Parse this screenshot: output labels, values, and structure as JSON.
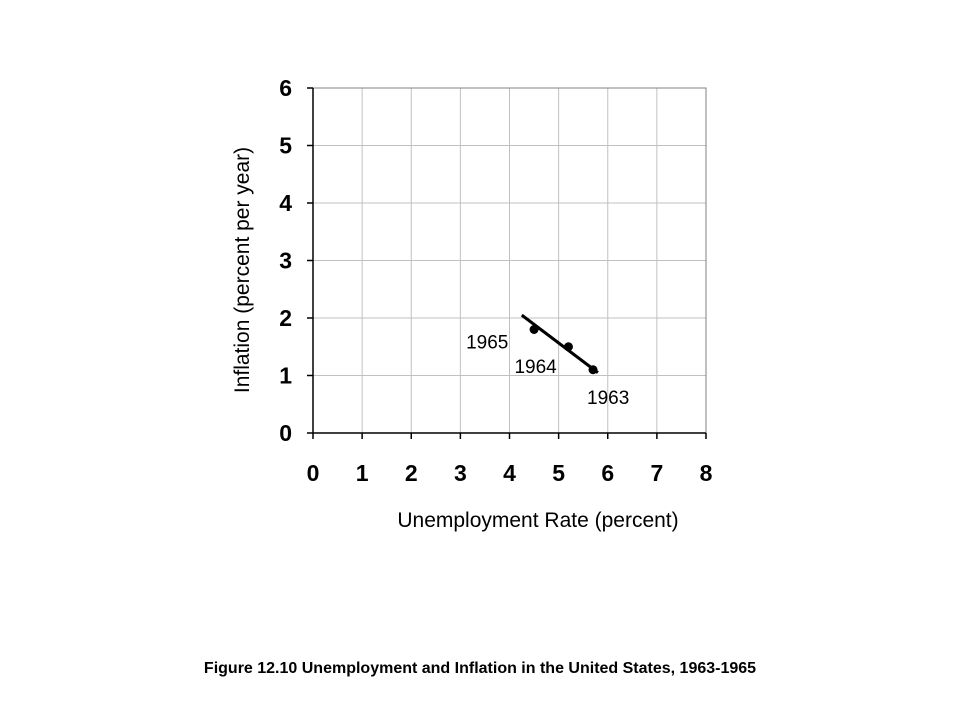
{
  "caption": "Figure 12.10 Unemployment and Inflation in the United States, 1963-1965",
  "chart_data": {
    "type": "scatter",
    "title": "",
    "xlabel": "Unemployment Rate (percent)",
    "ylabel": "Inflation (percent per year)",
    "xlim": [
      0,
      8
    ],
    "ylim": [
      0,
      6
    ],
    "x_ticks": [
      "0",
      "1",
      "2",
      "3",
      "4",
      "5",
      "6",
      "7",
      "8"
    ],
    "y_ticks": [
      "0",
      "1",
      "2",
      "3",
      "4",
      "5",
      "6"
    ],
    "grid": true,
    "points": [
      {
        "label": "1963",
        "x": 5.7,
        "y": 1.1
      },
      {
        "label": "1964",
        "x": 5.2,
        "y": 1.5
      },
      {
        "label": "1965",
        "x": 4.5,
        "y": 1.8
      }
    ],
    "trend_line": {
      "x": [
        4.25,
        5.8
      ],
      "y": [
        2.05,
        1.05
      ]
    },
    "colors": {
      "points": "#000000",
      "line": "#000000",
      "grid": "#c0c0c0"
    }
  }
}
